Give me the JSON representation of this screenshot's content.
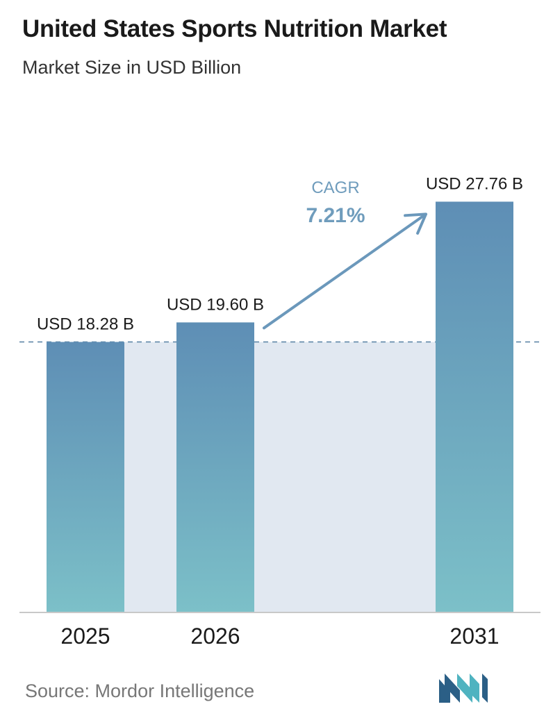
{
  "header": {
    "title": "United States Sports Nutrition Market",
    "subtitle": "Market Size in USD Billion"
  },
  "chart_data": {
    "type": "bar",
    "categories": [
      "2025",
      "2026",
      "2031"
    ],
    "values": [
      18.28,
      19.6,
      27.76
    ],
    "value_labels": [
      "USD 18.28 B",
      "USD 19.60 B",
      "USD 27.76 B"
    ],
    "title": "United States Sports Nutrition Market",
    "subtitle": "Market Size in USD Billion",
    "xlabel": "",
    "ylabel": "",
    "ylim": [
      0,
      29.0
    ],
    "grid": false,
    "reference_line_value": 18.28,
    "annotation": {
      "label": "CAGR",
      "value": "7.21%"
    }
  },
  "footer": {
    "source": "Source:  Mordor Intelligence",
    "logo_icon": "mordor-intelligence-logo-icon"
  },
  "colors": {
    "bar_top": "#5e8eb5",
    "bar_bottom": "#7cc0c8",
    "band": "#e1e8f1",
    "dashed_line": "#5f87a8",
    "arrow": "#6b98bb",
    "cagr_text": "#6f9cbc",
    "axis": "#c8c8c8",
    "logo_dark": "#2b5f86",
    "logo_light": "#4fb3c0"
  }
}
